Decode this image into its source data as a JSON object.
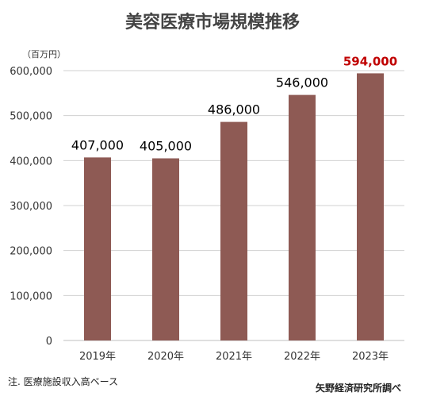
{
  "title": "美容医療市場規模推移",
  "unit_label": "（百万円）",
  "note": "注. 医療施設収入高ベース",
  "source": "矢野経済研究所調べ",
  "colors": {
    "bar": "#8e5a54",
    "highlight_label": "#c00000",
    "label": "#000000",
    "axis_text": "#333333",
    "gridline": "#d0d0d0"
  },
  "chart_data": {
    "type": "bar",
    "title": "美容医療市場規模推移",
    "ylabel": "（百万円）",
    "categories": [
      "2019年",
      "2020年",
      "2021年",
      "2022年",
      "2023年"
    ],
    "values": [
      407000,
      405000,
      486000,
      546000,
      594000
    ],
    "value_labels": [
      "407,000",
      "405,000",
      "486,000",
      "546,000",
      "594,000"
    ],
    "highlight_index": 4,
    "ylim": [
      0,
      600000
    ],
    "yticks": [
      0,
      100000,
      200000,
      300000,
      400000,
      500000,
      600000
    ],
    "ytick_labels": [
      "0",
      "100,000",
      "200,000",
      "300,000",
      "400,000",
      "500,000",
      "600,000"
    ],
    "grid": true,
    "legend": "none"
  }
}
